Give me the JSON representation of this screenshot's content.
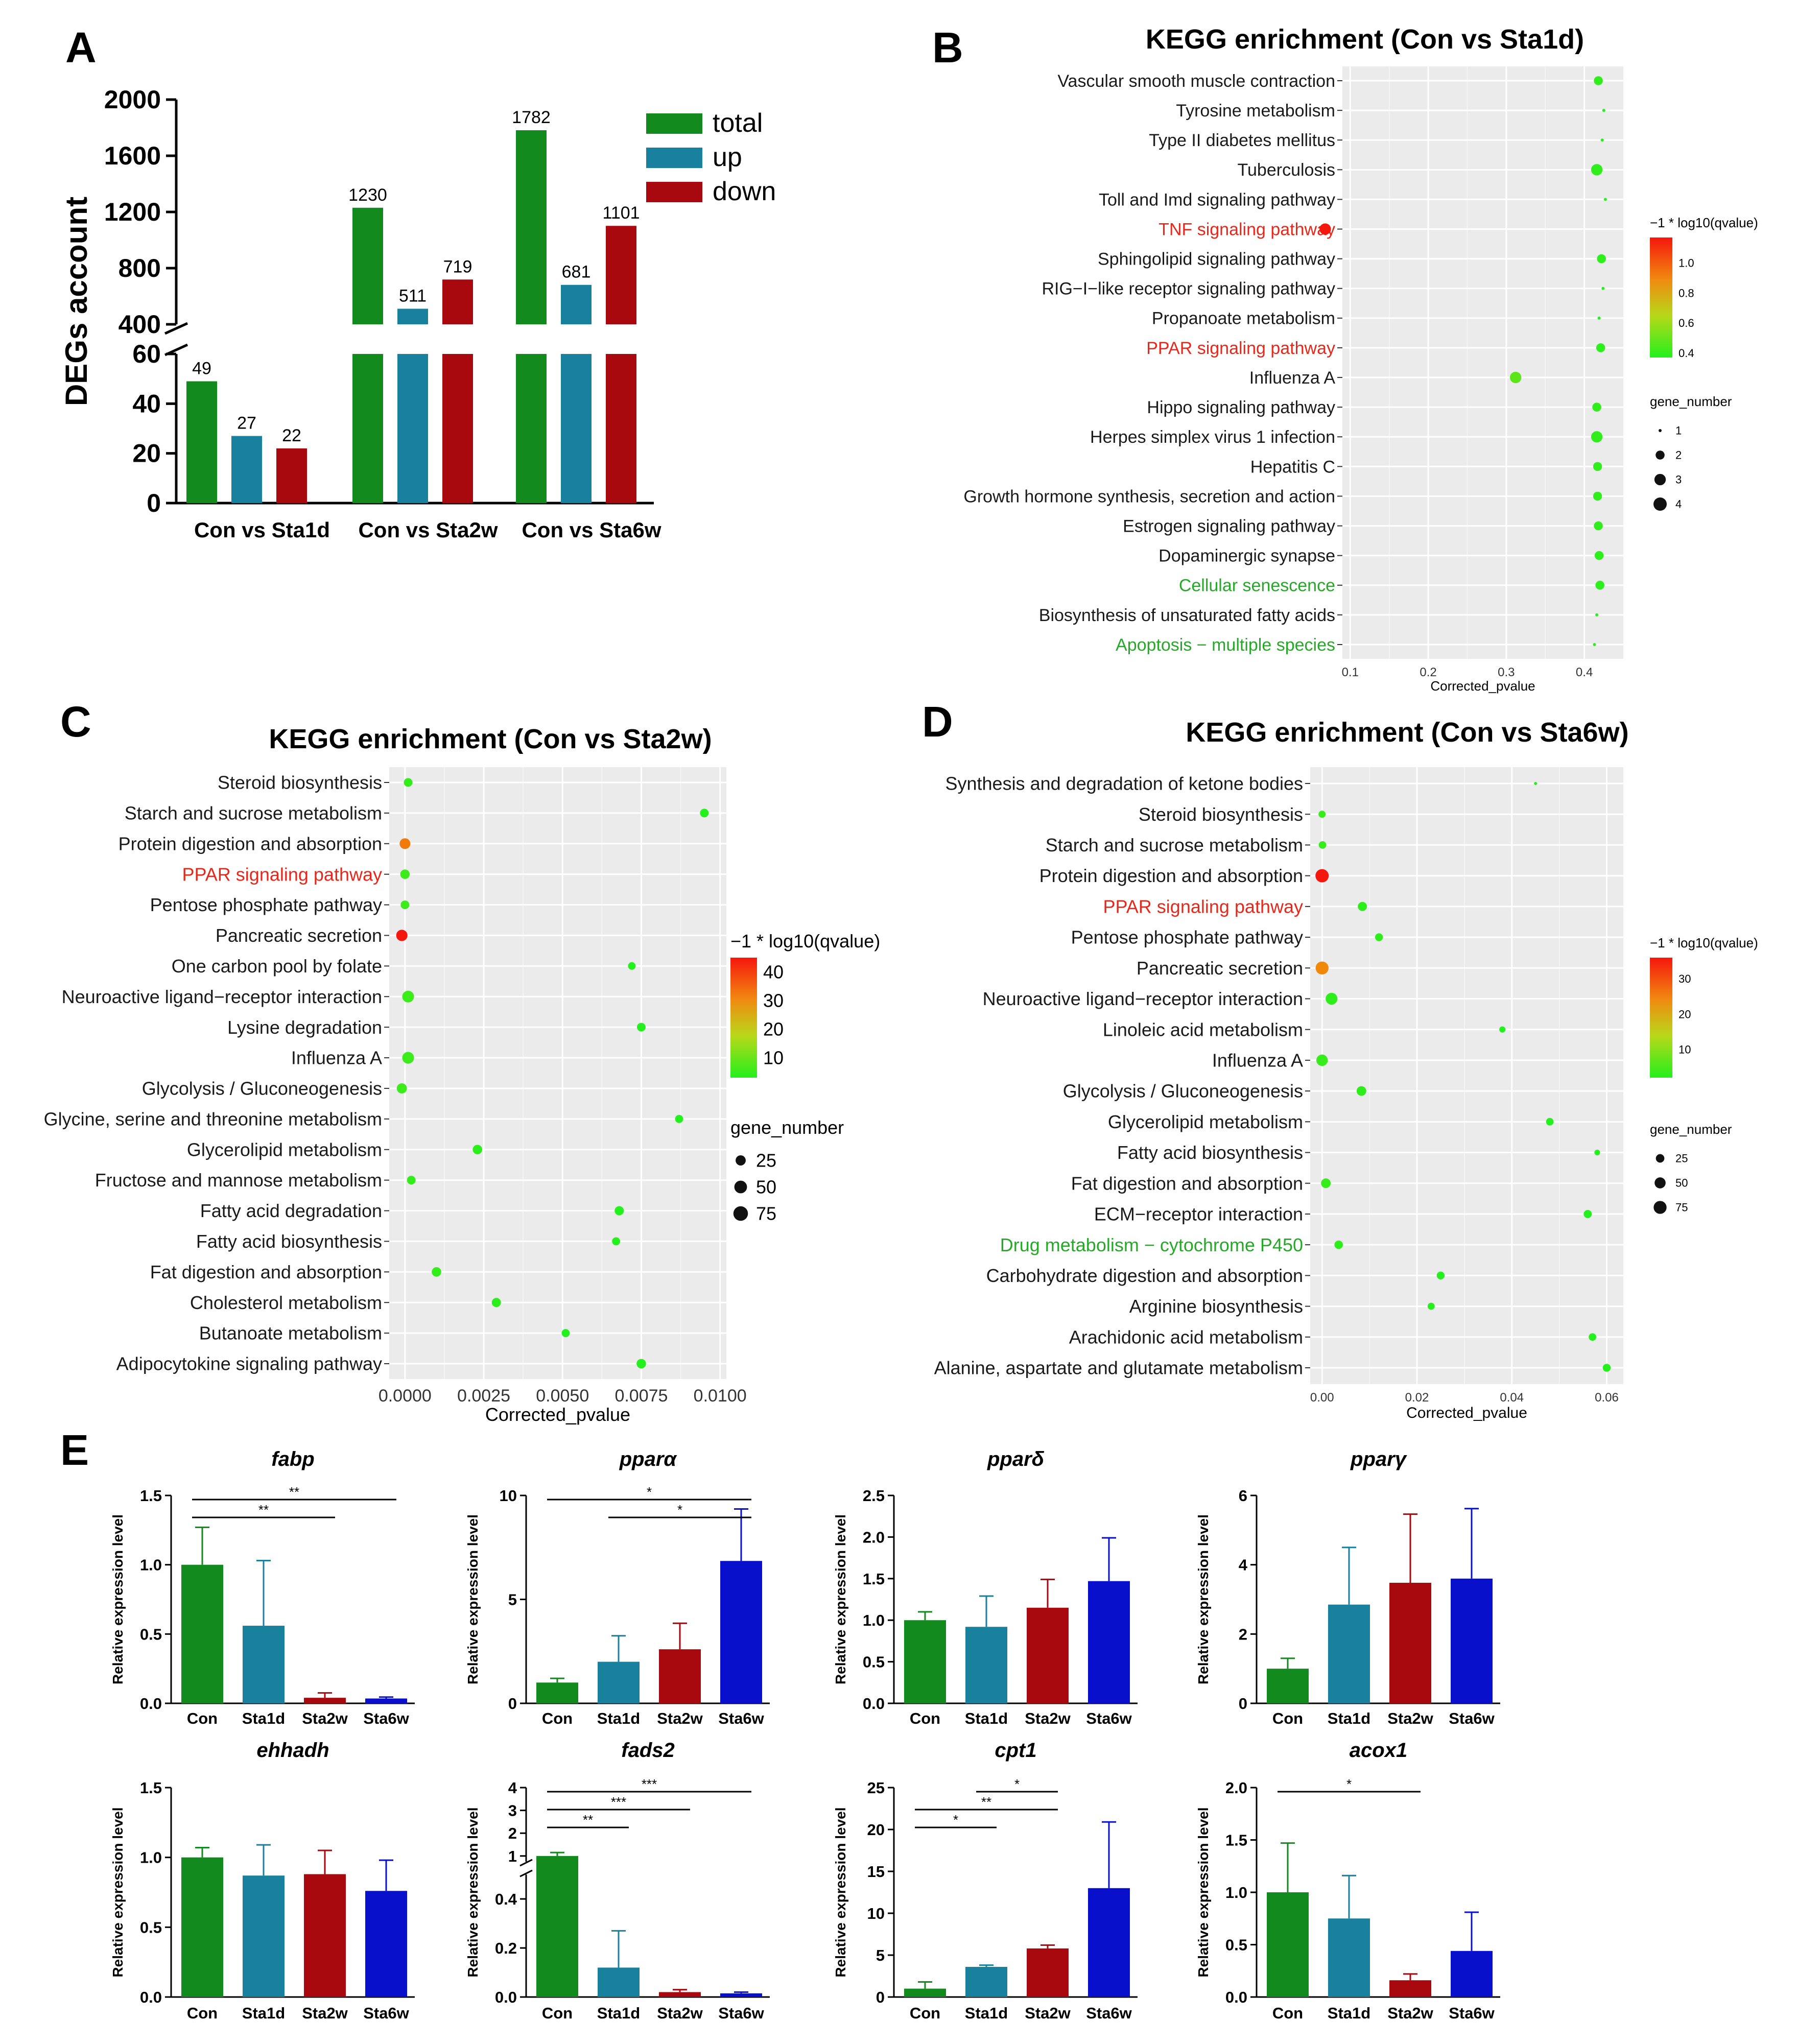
{
  "figure": {
    "panel_letters": [
      "A",
      "B",
      "C",
      "D",
      "E"
    ]
  },
  "colors": {
    "green": "#138a1e",
    "teal": "#19819e",
    "red": "#a8090e",
    "blue": "#0910cc",
    "grid_bg": "#ebebeb",
    "highlight_red": "#e3291c",
    "highlight_green": "#27a829",
    "dot_low": "#23f01c",
    "dot_high": "#f5170d"
  },
  "chart_data": [
    {
      "id": "A",
      "type": "bar",
      "title": "",
      "ylabel": "DEGs account",
      "categories": [
        "Con vs Sta1d",
        "Con vs Sta2w",
        "Con vs Sta6w"
      ],
      "series": [
        {
          "name": "total",
          "values": [
            49,
            1230,
            1782
          ]
        },
        {
          "name": "up",
          "values": [
            27,
            511,
            681
          ]
        },
        {
          "name": "down",
          "values": [
            22,
            719,
            1101
          ]
        }
      ],
      "axis_break": {
        "lower": [
          0,
          60
        ],
        "upper": [
          400,
          2000
        ]
      },
      "lower_ticks": [
        "0",
        "20",
        "40",
        "60"
      ],
      "upper_ticks": [
        "400",
        "800",
        "1200",
        "1600",
        "2000"
      ],
      "legend": "top-right"
    },
    {
      "id": "B",
      "type": "scatter",
      "title": "KEGG enrichment (Con vs Sta1d)",
      "xlabel": "Corrected_pvalue",
      "xlim": [
        0.09,
        0.45
      ],
      "xticks": [
        "0.1",
        "0.2",
        "0.3",
        "0.4"
      ],
      "pathways": [
        {
          "name": "Vascular smooth muscle contraction",
          "x": 0.418,
          "genes": 2,
          "q": 0.4,
          "hl": ""
        },
        {
          "name": "Tyrosine metabolism",
          "x": 0.425,
          "genes": 1,
          "q": 0.38,
          "hl": ""
        },
        {
          "name": "Type II diabetes mellitus",
          "x": 0.423,
          "genes": 1,
          "q": 0.38,
          "hl": ""
        },
        {
          "name": "Tuberculosis",
          "x": 0.416,
          "genes": 3,
          "q": 0.4,
          "hl": ""
        },
        {
          "name": "Toll and Imd signaling pathway",
          "x": 0.427,
          "genes": 1,
          "q": 0.37,
          "hl": ""
        },
        {
          "name": "TNF signaling pathway",
          "x": 0.068,
          "genes": 3,
          "q": 1.17,
          "hl": "red"
        },
        {
          "name": "Sphingolipid signaling pathway",
          "x": 0.422,
          "genes": 2,
          "q": 0.39,
          "hl": ""
        },
        {
          "name": "RIG−I−like receptor signaling pathway",
          "x": 0.424,
          "genes": 1,
          "q": 0.38,
          "hl": ""
        },
        {
          "name": "Propanoate metabolism",
          "x": 0.419,
          "genes": 1,
          "q": 0.38,
          "hl": ""
        },
        {
          "name": "PPAR signaling pathway",
          "x": 0.421,
          "genes": 2,
          "q": 0.39,
          "hl": "red"
        },
        {
          "name": "Influenza A",
          "x": 0.312,
          "genes": 3,
          "q": 0.5,
          "hl": ""
        },
        {
          "name": "Hippo signaling pathway",
          "x": 0.416,
          "genes": 2,
          "q": 0.4,
          "hl": ""
        },
        {
          "name": "Herpes simplex virus 1 infection",
          "x": 0.416,
          "genes": 3,
          "q": 0.4,
          "hl": ""
        },
        {
          "name": "Hepatitis C",
          "x": 0.417,
          "genes": 2,
          "q": 0.4,
          "hl": ""
        },
        {
          "name": "Growth hormone synthesis, secretion and action",
          "x": 0.417,
          "genes": 2,
          "q": 0.4,
          "hl": ""
        },
        {
          "name": "Estrogen signaling pathway",
          "x": 0.418,
          "genes": 2,
          "q": 0.4,
          "hl": ""
        },
        {
          "name": "Dopaminergic synapse",
          "x": 0.419,
          "genes": 2,
          "q": 0.39,
          "hl": ""
        },
        {
          "name": "Cellular senescence",
          "x": 0.42,
          "genes": 2,
          "q": 0.39,
          "hl": "green"
        },
        {
          "name": "Biosynthesis of unsaturated fatty acids",
          "x": 0.416,
          "genes": 1,
          "q": 0.39,
          "hl": ""
        },
        {
          "name": "Apoptosis − multiple species",
          "x": 0.413,
          "genes": 1,
          "q": 0.39,
          "hl": "green"
        }
      ],
      "color_legend": {
        "title": "−1 * log10(qvalue)",
        "ticks": [
          "1.0",
          "0.8",
          "0.6",
          "0.4"
        ],
        "range": [
          0.37,
          1.17
        ]
      },
      "size_legend": {
        "title": "gene_number",
        "items": [
          "1",
          "2",
          "3",
          "4"
        ]
      }
    },
    {
      "id": "C",
      "type": "scatter",
      "title": "KEGG enrichment (Con vs Sta2w)",
      "xlabel": "Corrected_pvalue",
      "xlim": [
        -0.0005,
        0.0102
      ],
      "xticks": [
        "0.0000",
        "0.0025",
        "0.0050",
        "0.0075",
        "0.0100"
      ],
      "pathways": [
        {
          "name": "Steroid biosynthesis",
          "x": 0.0001,
          "genes": 15,
          "q": 5,
          "hl": ""
        },
        {
          "name": "Starch and sucrose metabolism",
          "x": 0.0095,
          "genes": 15,
          "q": 3,
          "hl": ""
        },
        {
          "name": "Protein digestion and absorption",
          "x": 0.0,
          "genes": 30,
          "q": 33,
          "hl": ""
        },
        {
          "name": "PPAR signaling pathway",
          "x": 0.0,
          "genes": 20,
          "q": 6,
          "hl": "red"
        },
        {
          "name": "Pentose phosphate pathway",
          "x": 0.0,
          "genes": 15,
          "q": 6,
          "hl": ""
        },
        {
          "name": "Pancreatic secretion",
          "x": -0.0001,
          "genes": 35,
          "q": 45,
          "hl": ""
        },
        {
          "name": "One carbon pool by folate",
          "x": 0.0072,
          "genes": 10,
          "q": 3,
          "hl": ""
        },
        {
          "name": "Neuroactive ligand−receptor interaction",
          "x": 0.0001,
          "genes": 40,
          "q": 6,
          "hl": ""
        },
        {
          "name": "Lysine degradation",
          "x": 0.0075,
          "genes": 15,
          "q": 3,
          "hl": ""
        },
        {
          "name": "Influenza A",
          "x": 0.0001,
          "genes": 40,
          "q": 6,
          "hl": ""
        },
        {
          "name": "Glycolysis / Gluconeogenesis",
          "x": -0.0001,
          "genes": 25,
          "q": 6,
          "hl": ""
        },
        {
          "name": "Glycine, serine and threonine metabolism",
          "x": 0.0087,
          "genes": 12,
          "q": 3,
          "hl": ""
        },
        {
          "name": "Glycerolipid metabolism",
          "x": 0.0023,
          "genes": 20,
          "q": 4,
          "hl": ""
        },
        {
          "name": "Fructose and mannose metabolism",
          "x": 0.0002,
          "genes": 15,
          "q": 5,
          "hl": ""
        },
        {
          "name": "Fatty acid degradation",
          "x": 0.0068,
          "genes": 18,
          "q": 3,
          "hl": ""
        },
        {
          "name": "Fatty acid biosynthesis",
          "x": 0.0067,
          "genes": 12,
          "q": 3,
          "hl": ""
        },
        {
          "name": "Fat digestion and absorption",
          "x": 0.001,
          "genes": 20,
          "q": 5,
          "hl": ""
        },
        {
          "name": "Cholesterol metabolism",
          "x": 0.0029,
          "genes": 18,
          "q": 4,
          "hl": ""
        },
        {
          "name": "Butanoate metabolism",
          "x": 0.0051,
          "genes": 12,
          "q": 3,
          "hl": ""
        },
        {
          "name": "Adipocytokine signaling pathway",
          "x": 0.0075,
          "genes": 20,
          "q": 3,
          "hl": ""
        }
      ],
      "color_legend": {
        "title": "−1 * log10(qvalue)",
        "ticks": [
          "40",
          "30",
          "20",
          "10"
        ],
        "range": [
          3,
          45
        ]
      },
      "size_legend": {
        "title": "gene_number",
        "items": [
          "25",
          "50",
          "75"
        ]
      }
    },
    {
      "id": "D",
      "type": "scatter",
      "title": "KEGG enrichment (Con vs Sta6w)",
      "xlabel": "Corrected_pvalue",
      "xlim": [
        -0.0025,
        0.0635
      ],
      "xticks": [
        "0.00",
        "0.02",
        "0.04",
        "0.06"
      ],
      "pathways": [
        {
          "name": "Synthesis and degradation of ketone bodies",
          "x": 0.045,
          "genes": 3,
          "q": 2,
          "hl": ""
        },
        {
          "name": "Steroid biosynthesis",
          "x": 0.0,
          "genes": 15,
          "q": 4,
          "hl": ""
        },
        {
          "name": "Starch and sucrose metabolism",
          "x": 0.0001,
          "genes": 18,
          "q": 4,
          "hl": ""
        },
        {
          "name": "Protein digestion and absorption",
          "x": 0.0,
          "genes": 80,
          "q": 36,
          "hl": ""
        },
        {
          "name": "PPAR signaling pathway",
          "x": 0.0085,
          "genes": 30,
          "q": 3,
          "hl": "red"
        },
        {
          "name": "Pentose phosphate pathway",
          "x": 0.012,
          "genes": 20,
          "q": 3,
          "hl": ""
        },
        {
          "name": "Pancreatic secretion",
          "x": 0.0,
          "genes": 75,
          "q": 25,
          "hl": ""
        },
        {
          "name": "Neuroactive ligand−receptor interaction",
          "x": 0.002,
          "genes": 60,
          "q": 3,
          "hl": ""
        },
        {
          "name": "Linoleic acid metabolism",
          "x": 0.038,
          "genes": 10,
          "q": 2,
          "hl": ""
        },
        {
          "name": "Influenza A",
          "x": 0.0,
          "genes": 55,
          "q": 4,
          "hl": ""
        },
        {
          "name": "Glycolysis / Gluconeogenesis",
          "x": 0.0083,
          "genes": 35,
          "q": 3,
          "hl": ""
        },
        {
          "name": "Glycerolipid metabolism",
          "x": 0.048,
          "genes": 18,
          "q": 2,
          "hl": ""
        },
        {
          "name": "Fatty acid biosynthesis",
          "x": 0.058,
          "genes": 8,
          "q": 2,
          "hl": ""
        },
        {
          "name": "Fat digestion and absorption",
          "x": 0.0008,
          "genes": 35,
          "q": 4,
          "hl": ""
        },
        {
          "name": "ECM−receptor interaction",
          "x": 0.056,
          "genes": 22,
          "q": 2,
          "hl": ""
        },
        {
          "name": "Drug metabolism − cytochrome P450",
          "x": 0.0035,
          "genes": 25,
          "q": 3,
          "hl": "green"
        },
        {
          "name": "Carbohydrate digestion and absorption",
          "x": 0.025,
          "genes": 20,
          "q": 2,
          "hl": ""
        },
        {
          "name": "Arginine biosynthesis",
          "x": 0.023,
          "genes": 15,
          "q": 2,
          "hl": ""
        },
        {
          "name": "Arachidonic acid metabolism",
          "x": 0.057,
          "genes": 18,
          "q": 2,
          "hl": ""
        },
        {
          "name": "Alanine, aspartate and glutamate metabolism",
          "x": 0.06,
          "genes": 20,
          "q": 2,
          "hl": ""
        }
      ],
      "color_legend": {
        "title": "−1 * log10(qvalue)",
        "ticks": [
          "30",
          "20",
          "10"
        ],
        "range": [
          2,
          36
        ]
      },
      "size_legend": {
        "title": "gene_number",
        "items": [
          "25",
          "50",
          "75"
        ]
      }
    },
    {
      "id": "E",
      "type": "bar",
      "ylabel": "Relative expression level",
      "categories": [
        "Con",
        "Sta1d",
        "Sta2w",
        "Sta6w"
      ],
      "subplots": [
        {
          "gene": "fabp",
          "values": [
            1.0,
            0.56,
            0.04,
            0.035
          ],
          "errors": [
            0.27,
            0.47,
            0.035,
            0.01
          ],
          "ylim": [
            0,
            1.5
          ],
          "ticks": [
            "0.0",
            "0.5",
            "1.0",
            "1.5"
          ],
          "tick_vals": [
            0,
            0.5,
            1.0,
            1.5
          ],
          "sig": [
            {
              "from": 0,
              "to": 3,
              "label": "**"
            },
            {
              "from": 0,
              "to": 2,
              "label": "**"
            }
          ]
        },
        {
          "gene": "pparα",
          "values": [
            1.0,
            2.0,
            2.6,
            6.85
          ],
          "errors": [
            0.2,
            1.25,
            1.25,
            2.5
          ],
          "ylim": [
            0,
            10
          ],
          "ticks": [
            "0",
            "5",
            "10"
          ],
          "tick_vals": [
            0,
            5,
            10
          ],
          "sig": [
            {
              "from": 0,
              "to": 3,
              "label": "*"
            },
            {
              "from": 1,
              "to": 3,
              "label": "*"
            }
          ]
        },
        {
          "gene": "pparδ",
          "values": [
            1.0,
            0.92,
            1.15,
            1.47
          ],
          "errors": [
            0.1,
            0.37,
            0.34,
            0.52
          ],
          "ylim": [
            0,
            2.5
          ],
          "ticks": [
            "0.0",
            "0.5",
            "1.0",
            "1.5",
            "2.0",
            "2.5"
          ],
          "tick_vals": [
            0,
            0.5,
            1.0,
            1.5,
            2.0,
            2.5
          ],
          "sig": []
        },
        {
          "gene": "pparγ",
          "values": [
            1.0,
            2.85,
            3.48,
            3.6
          ],
          "errors": [
            0.3,
            1.65,
            1.98,
            2.02
          ],
          "ylim": [
            0,
            6
          ],
          "ticks": [
            "0",
            "2",
            "4",
            "6"
          ],
          "tick_vals": [
            0,
            2,
            4,
            6
          ],
          "sig": []
        },
        {
          "gene": "ehhadh",
          "values": [
            1.0,
            0.87,
            0.88,
            0.76
          ],
          "errors": [
            0.07,
            0.22,
            0.17,
            0.22
          ],
          "ylim": [
            0,
            1.5
          ],
          "ticks": [
            "0.0",
            "0.5",
            "1.0",
            "1.5"
          ],
          "tick_vals": [
            0,
            0.5,
            1.0,
            1.5
          ],
          "sig": []
        },
        {
          "gene": "fads2",
          "values": [
            1.0,
            0.12,
            0.02,
            0.015
          ],
          "errors": [
            0.15,
            0.15,
            0.01,
            0.005
          ],
          "ylim": [
            0,
            4
          ],
          "ticks": [
            "0.0",
            "0.2",
            "0.4",
            "1",
            "2",
            "3",
            "4"
          ],
          "tick_vals": [
            0,
            0.2,
            0.4,
            1,
            2,
            3,
            4
          ],
          "axis_break": {
            "lower": [
              0,
              0.5
            ],
            "upper": [
              0.75,
              4
            ]
          },
          "sig": [
            {
              "from": 0,
              "to": 3,
              "label": "***"
            },
            {
              "from": 0,
              "to": 2,
              "label": "***"
            },
            {
              "from": 0,
              "to": 1,
              "label": "**"
            }
          ]
        },
        {
          "gene": "cpt1",
          "values": [
            1.0,
            3.6,
            5.8,
            13.0
          ],
          "errors": [
            0.8,
            0.2,
            0.4,
            7.9
          ],
          "ylim": [
            0,
            25
          ],
          "ticks": [
            "0",
            "5",
            "10",
            "15",
            "20",
            "25"
          ],
          "tick_vals": [
            0,
            5,
            10,
            15,
            20,
            25
          ],
          "sig": [
            {
              "from": 1,
              "to": 2,
              "label": "*"
            },
            {
              "from": 0,
              "to": 2,
              "label": "**"
            },
            {
              "from": 0,
              "to": 1,
              "label": "*"
            }
          ]
        },
        {
          "gene": "acox1",
          "values": [
            1.0,
            0.75,
            0.16,
            0.44
          ],
          "errors": [
            0.47,
            0.41,
            0.06,
            0.37
          ],
          "ylim": [
            0,
            2.0
          ],
          "ticks": [
            "0.0",
            "0.5",
            "1.0",
            "1.5",
            "2.0"
          ],
          "tick_vals": [
            0,
            0.5,
            1.0,
            1.5,
            2.0
          ],
          "sig": [
            {
              "from": 0,
              "to": 2,
              "label": "*"
            }
          ]
        }
      ]
    }
  ]
}
